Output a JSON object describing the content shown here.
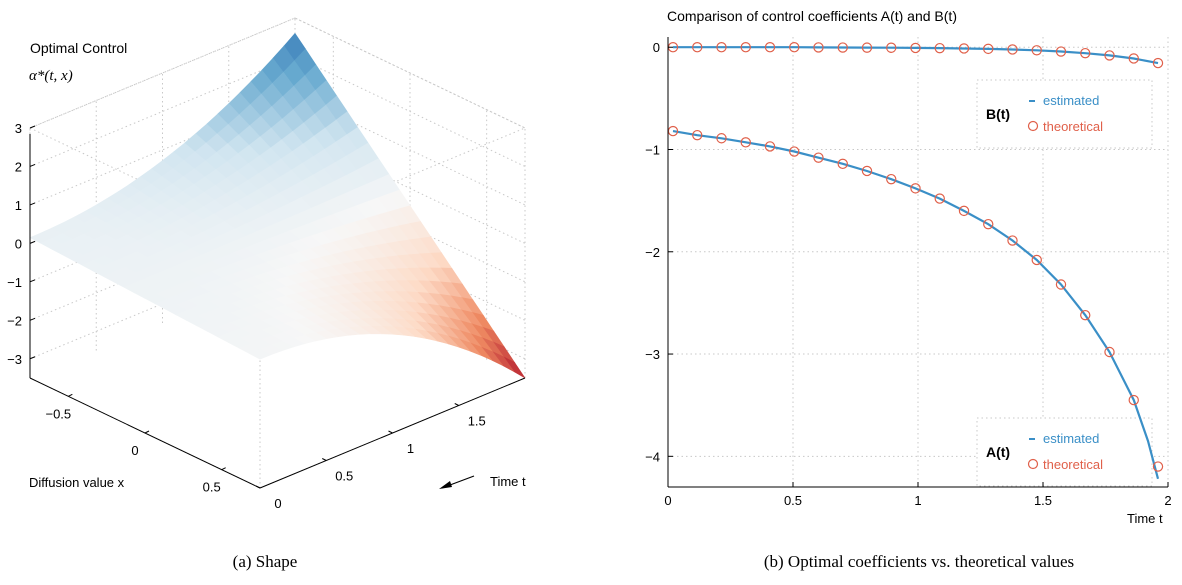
{
  "captions": {
    "left": "(a) Shape",
    "right": "(b) Optimal coefficients vs. theoretical values"
  },
  "chart_data": [
    {
      "type": "surface",
      "title": "Optimal Control",
      "zlabel": "α*(t, x)",
      "xlabel": "Diffusion value x",
      "ylabel": "Time t",
      "z_ticks": [
        3,
        2,
        1,
        0,
        -1,
        -2,
        -3
      ],
      "z_tick_labels": [
        "3",
        "2",
        "1",
        "0",
        "−1",
        "−2",
        "−3"
      ],
      "x_ticks": [
        -0.5,
        0,
        0.5
      ],
      "x_tick_labels": [
        "−0.5",
        "0",
        "0.5"
      ],
      "t_ticks": [
        0,
        0.5,
        1,
        1.5
      ],
      "t_tick_labels": [
        "0",
        "0.5",
        "1",
        "1.5"
      ],
      "xlim": [
        -0.75,
        0.75
      ],
      "tlim": [
        0,
        2
      ],
      "zlim": [
        -3.5,
        3
      ],
      "corners": {
        "x_neg_t_max": 2.6,
        "x_neg_t_0": 0.15,
        "x_pos_t_0": -0.15,
        "x_pos_t_max": -3.5
      },
      "colormap": [
        "#b2182b",
        "#ef8a62",
        "#fddbc7",
        "#f7f7f7",
        "#d1e5f0",
        "#67a9cf",
        "#2166ac"
      ]
    },
    {
      "type": "line",
      "title": "Comparison of control coefficients A(t) and B(t)",
      "xlabel": "Time t",
      "ylabel": "",
      "xlim": [
        0,
        2
      ],
      "ylim": [
        -4.3,
        0.1
      ],
      "x_ticks": [
        0,
        0.5,
        1,
        1.5,
        2
      ],
      "x_tick_labels": [
        "0",
        "0.5",
        "1",
        "1.5",
        "2"
      ],
      "y_ticks": [
        0,
        -1,
        -2,
        -3,
        -4
      ],
      "y_tick_labels": [
        "0",
        "−1",
        "−2",
        "−3",
        "−4"
      ],
      "grid": true,
      "colors": {
        "estimated": "#3a8fc7",
        "theoretical": "#e0604a"
      },
      "x": [
        0.02,
        0.117,
        0.214,
        0.311,
        0.408,
        0.505,
        0.602,
        0.699,
        0.796,
        0.893,
        0.99,
        1.087,
        1.184,
        1.281,
        1.378,
        1.475,
        1.572,
        1.669,
        1.766,
        1.863,
        1.96
      ],
      "series": [
        {
          "name": "A(t)",
          "legend": {
            "title": "A(t)",
            "estimated": "estimated",
            "theoretical": "theoretical",
            "position": "bottom-right"
          },
          "theoretical": [
            -0.82,
            -0.86,
            -0.89,
            -0.93,
            -0.97,
            -1.02,
            -1.08,
            -1.14,
            -1.21,
            -1.29,
            -1.38,
            -1.48,
            -1.6,
            -1.73,
            -1.89,
            -2.08,
            -2.32,
            -2.62,
            -2.98,
            -3.45,
            -4.1
          ],
          "estimated_x": [
            0.02,
            0.117,
            0.214,
            0.311,
            0.408,
            0.505,
            0.602,
            0.699,
            0.796,
            0.893,
            0.99,
            1.087,
            1.184,
            1.281,
            1.378,
            1.475,
            1.572,
            1.669,
            1.766,
            1.863,
            1.92,
            1.96
          ],
          "estimated": [
            -0.82,
            -0.86,
            -0.89,
            -0.93,
            -0.97,
            -1.02,
            -1.08,
            -1.14,
            -1.21,
            -1.29,
            -1.38,
            -1.48,
            -1.6,
            -1.73,
            -1.89,
            -2.08,
            -2.32,
            -2.62,
            -2.98,
            -3.45,
            -3.85,
            -4.22
          ]
        },
        {
          "name": "B(t)",
          "legend": {
            "title": "B(t)",
            "estimated": "estimated",
            "theoretical": "theoretical",
            "position": "top-right"
          },
          "theoretical": [
            0.0,
            0.0,
            0.0,
            0.0,
            0.0,
            0.0,
            -0.002,
            -0.003,
            -0.004,
            -0.005,
            -0.007,
            -0.009,
            -0.012,
            -0.016,
            -0.022,
            -0.03,
            -0.042,
            -0.058,
            -0.08,
            -0.11,
            -0.155
          ],
          "estimated_x": [
            0.02,
            0.117,
            0.214,
            0.311,
            0.408,
            0.505,
            0.602,
            0.699,
            0.796,
            0.893,
            0.99,
            1.087,
            1.184,
            1.281,
            1.378,
            1.475,
            1.572,
            1.669,
            1.766,
            1.863,
            1.96
          ],
          "estimated": [
            0.0,
            0.0,
            0.0,
            0.0,
            0.0,
            0.0,
            -0.002,
            -0.003,
            -0.004,
            -0.005,
            -0.007,
            -0.009,
            -0.012,
            -0.016,
            -0.022,
            -0.03,
            -0.042,
            -0.058,
            -0.08,
            -0.11,
            -0.155
          ]
        }
      ]
    }
  ]
}
